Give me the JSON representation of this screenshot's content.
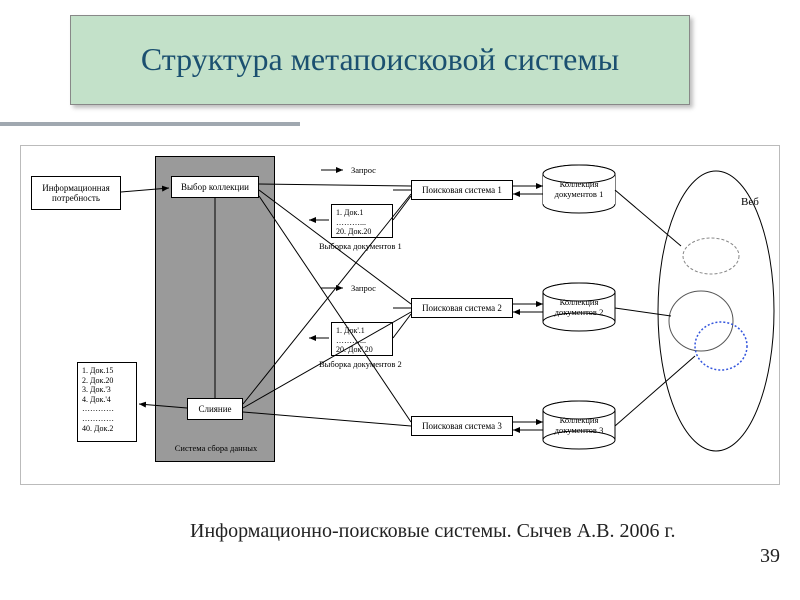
{
  "title": "Структура метапоисковой системы",
  "footer": "Информационно-поисковые системы. Сычев А.В. 2006 г.",
  "page_number": "39",
  "diagram": {
    "info_need": "Информационная\nпотребность",
    "collection_choice": "Выбор коллекции",
    "merge": "Слияние",
    "system_label": "Система сбора данных",
    "search_system_1": "Поисковая система 1",
    "search_system_2": "Поисковая система 2",
    "search_system_3": "Поисковая система 3",
    "collection_1": "Коллекция\nдокументов 1",
    "collection_2": "Коллекция\nдокументов 2",
    "collection_3": "Коллекция\nдокументов 3",
    "web_label": "Веб",
    "request_label": "Запрос",
    "sample_1_label": "Выборка документов 1",
    "sample_2_label": "Выборка документов 2",
    "doc_sample_1": "1. Док.1\n………...\n20. Док.20",
    "doc_sample_2": "1. Док'.1\n………...\n20. Док'.20",
    "merged_docs": "1. Док.15\n2. Док.20\n3. Док.'3\n4. Док.'4\n…………\n…………\n40. Док.2"
  },
  "colors": {
    "title_bg": "#c3e1c9",
    "title_text": "#1b5070",
    "gray": "#9a9a9a",
    "blue_ellipse": "#3355dd"
  }
}
